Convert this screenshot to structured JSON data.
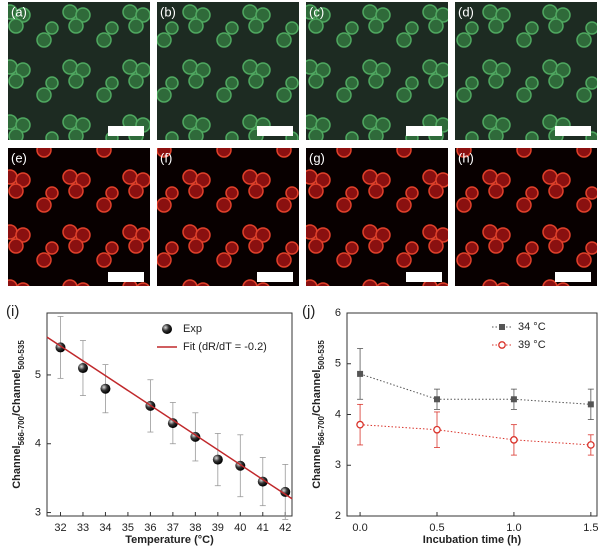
{
  "panels": [
    "(a)",
    "(b)",
    "(c)",
    "(d)",
    "(e)",
    "(f)",
    "(g)",
    "(h)"
  ],
  "chart_data": [
    {
      "type": "scatter",
      "label": "(i)",
      "xlabel": "Temperature (°C)",
      "ylabel": [
        "Channel",
        "566-700",
        "/Channel",
        "500-535"
      ],
      "xlim": [
        31.4,
        42.3
      ],
      "xticks": [
        32,
        33,
        34,
        35,
        36,
        37,
        38,
        39,
        40,
        41,
        42
      ],
      "ylim": [
        2.95,
        5.9
      ],
      "yticks": [
        3,
        4,
        5
      ],
      "legend": "top-right",
      "series": [
        {
          "name": "Exp",
          "kind": "points",
          "marker": "ball",
          "color": "#111111",
          "x": [
            32,
            33,
            34,
            36,
            37,
            38,
            39,
            40,
            41,
            42
          ],
          "values": [
            5.4,
            5.1,
            4.8,
            4.55,
            4.3,
            4.1,
            3.77,
            3.68,
            3.45,
            3.3
          ],
          "errors": [
            0.45,
            0.4,
            0.35,
            0.38,
            0.3,
            0.35,
            0.38,
            0.45,
            0.35,
            0.4
          ]
        },
        {
          "name": "Fit (dR/dT = -0.2)",
          "kind": "line",
          "color": "#c0282b",
          "x": [
            31.4,
            42.3
          ],
          "values": [
            5.55,
            3.2
          ]
        }
      ]
    },
    {
      "type": "line",
      "label": "(j)",
      "xlabel": "Incubation time (h)",
      "ylabel": [
        "Channel",
        "566-700",
        "/Channel",
        "500-535"
      ],
      "xlim": [
        -0.085,
        1.54
      ],
      "xticks": [
        {
          "value": 0,
          "label": "0.0"
        },
        {
          "value": 0.5,
          "label": "0.5"
        },
        {
          "value": 1,
          "label": "1.0"
        },
        {
          "value": 1.5,
          "label": "1.5"
        }
      ],
      "ylim": [
        2,
        6
      ],
      "yticks": [
        2,
        3,
        4,
        5,
        6
      ],
      "legend": "top-right",
      "x": [
        0,
        0.5,
        1,
        1.5
      ],
      "series": [
        {
          "name": "34 °C",
          "marker": "square",
          "color": "#555555",
          "dash": true,
          "values": [
            4.8,
            4.3,
            4.3,
            4.2
          ],
          "errors": [
            0.5,
            0.2,
            0.2,
            0.3
          ]
        },
        {
          "name": "39 °C",
          "marker": "circle",
          "color": "#d9332b",
          "dash": true,
          "values": [
            3.8,
            3.7,
            3.5,
            3.4
          ],
          "errors": [
            0.4,
            0.35,
            0.3,
            0.2
          ]
        }
      ]
    }
  ]
}
